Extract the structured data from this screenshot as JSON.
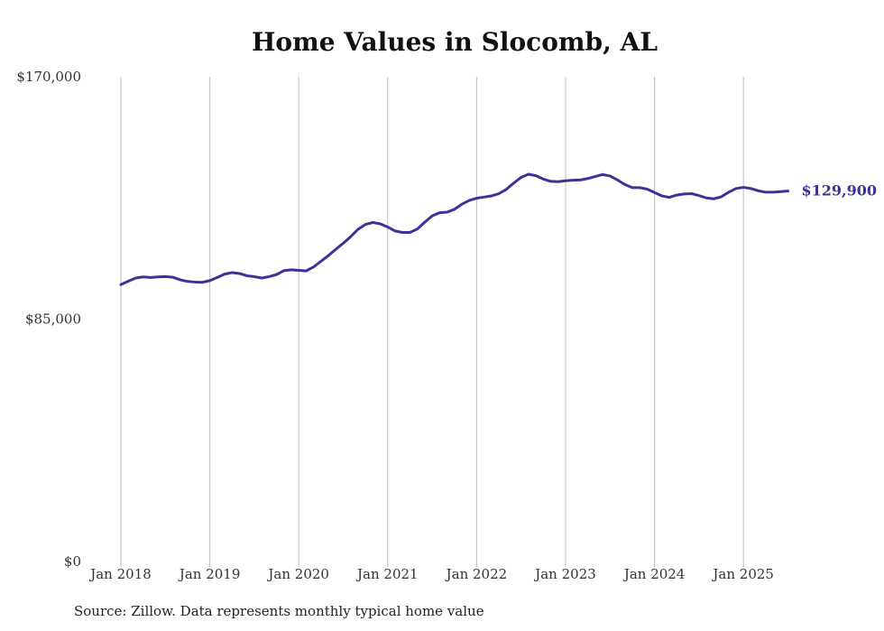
{
  "chart_data": {
    "type": "line",
    "title": "Home Values in Slocomb, AL",
    "source": "Source: Zillow. Data represents monthly typical home value",
    "xlabel": "",
    "ylabel": "",
    "ylim": [
      0,
      170000
    ],
    "y_ticks": [
      {
        "value": 0,
        "label": "$0"
      },
      {
        "value": 85000,
        "label": "$85,000"
      },
      {
        "value": 170000,
        "label": "$170,000"
      }
    ],
    "x_ticks": [
      {
        "date": "2018-01",
        "label": "Jan 2018"
      },
      {
        "date": "2019-01",
        "label": "Jan 2019"
      },
      {
        "date": "2020-01",
        "label": "Jan 2020"
      },
      {
        "date": "2021-01",
        "label": "Jan 2021"
      },
      {
        "date": "2022-01",
        "label": "Jan 2022"
      },
      {
        "date": "2023-01",
        "label": "Jan 2023"
      },
      {
        "date": "2024-01",
        "label": "Jan 2024"
      },
      {
        "date": "2025-01",
        "label": "Jan 2025"
      }
    ],
    "grid": "vertical",
    "line_color": "#3b3496",
    "end_label": "$129,900",
    "series": [
      {
        "points": [
          [
            "2018-01",
            97100
          ],
          [
            "2018-02",
            98300
          ],
          [
            "2018-03",
            99400
          ],
          [
            "2018-04",
            99800
          ],
          [
            "2018-05",
            99600
          ],
          [
            "2018-06",
            99800
          ],
          [
            "2018-07",
            99900
          ],
          [
            "2018-08",
            99700
          ],
          [
            "2018-09",
            98800
          ],
          [
            "2018-10",
            98200
          ],
          [
            "2018-11",
            98000
          ],
          [
            "2018-12",
            97900
          ],
          [
            "2019-01",
            98500
          ],
          [
            "2019-02",
            99600
          ],
          [
            "2019-03",
            100800
          ],
          [
            "2019-04",
            101300
          ],
          [
            "2019-05",
            101000
          ],
          [
            "2019-06",
            100200
          ],
          [
            "2019-07",
            99900
          ],
          [
            "2019-08",
            99400
          ],
          [
            "2019-09",
            99900
          ],
          [
            "2019-10",
            100600
          ],
          [
            "2019-11",
            102000
          ],
          [
            "2019-12",
            102300
          ],
          [
            "2020-01",
            102100
          ],
          [
            "2020-02",
            101900
          ],
          [
            "2020-03",
            103300
          ],
          [
            "2020-04",
            105300
          ],
          [
            "2020-05",
            107300
          ],
          [
            "2020-06",
            109500
          ],
          [
            "2020-07",
            111600
          ],
          [
            "2020-08",
            113900
          ],
          [
            "2020-09",
            116500
          ],
          [
            "2020-10",
            118200
          ],
          [
            "2020-11",
            118900
          ],
          [
            "2020-12",
            118400
          ],
          [
            "2021-01",
            117300
          ],
          [
            "2021-02",
            115900
          ],
          [
            "2021-03",
            115400
          ],
          [
            "2021-04",
            115400
          ],
          [
            "2021-05",
            116600
          ],
          [
            "2021-06",
            119000
          ],
          [
            "2021-07",
            121200
          ],
          [
            "2021-08",
            122300
          ],
          [
            "2021-09",
            122500
          ],
          [
            "2021-10",
            123500
          ],
          [
            "2021-11",
            125300
          ],
          [
            "2021-12",
            126600
          ],
          [
            "2022-01",
            127400
          ],
          [
            "2022-02",
            127800
          ],
          [
            "2022-03",
            128200
          ],
          [
            "2022-04",
            129000
          ],
          [
            "2022-05",
            130500
          ],
          [
            "2022-06",
            132700
          ],
          [
            "2022-07",
            134700
          ],
          [
            "2022-08",
            135800
          ],
          [
            "2022-09",
            135300
          ],
          [
            "2022-10",
            134100
          ],
          [
            "2022-11",
            133300
          ],
          [
            "2022-12",
            133200
          ],
          [
            "2023-01",
            133500
          ],
          [
            "2023-02",
            133700
          ],
          [
            "2023-03",
            133800
          ],
          [
            "2023-04",
            134300
          ],
          [
            "2023-05",
            135000
          ],
          [
            "2023-06",
            135700
          ],
          [
            "2023-07",
            135200
          ],
          [
            "2023-08",
            133800
          ],
          [
            "2023-09",
            132200
          ],
          [
            "2023-10",
            131100
          ],
          [
            "2023-11",
            131100
          ],
          [
            "2023-12",
            130600
          ],
          [
            "2024-01",
            129400
          ],
          [
            "2024-02",
            128200
          ],
          [
            "2024-03",
            127700
          ],
          [
            "2024-04",
            128500
          ],
          [
            "2024-05",
            128900
          ],
          [
            "2024-06",
            129000
          ],
          [
            "2024-07",
            128300
          ],
          [
            "2024-08",
            127500
          ],
          [
            "2024-09",
            127200
          ],
          [
            "2024-10",
            127900
          ],
          [
            "2024-11",
            129500
          ],
          [
            "2024-12",
            130800
          ],
          [
            "2025-01",
            131200
          ],
          [
            "2025-02",
            130800
          ],
          [
            "2025-03",
            130000
          ],
          [
            "2025-04",
            129500
          ],
          [
            "2025-05",
            129500
          ],
          [
            "2025-06",
            129700
          ],
          [
            "2025-07",
            129900
          ]
        ]
      }
    ]
  }
}
